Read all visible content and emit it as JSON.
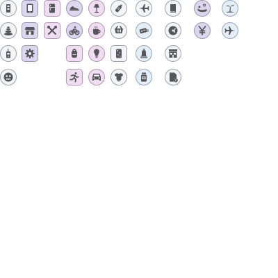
{
  "icons": [
    {
      "name": "battery-phone-icon"
    },
    {
      "name": "tablet-icon"
    },
    {
      "name": "refrigerator-icon"
    },
    {
      "name": "sneaker-icon"
    },
    {
      "name": "floor-lamp-icon"
    },
    {
      "name": "baby-bottle-icon"
    },
    {
      "name": "airplane-icon"
    },
    {
      "name": "book-icon"
    },
    {
      "name": "hot-spring-icon"
    },
    {
      "name": "palm-beach-icon"
    },
    {
      "name": "stone-stack-icon"
    },
    {
      "name": "storefront-icon"
    },
    {
      "name": "tools-icon"
    },
    {
      "name": "bicycle-icon"
    },
    {
      "name": "coffee-cup-icon"
    },
    {
      "name": "basket-icon"
    },
    {
      "name": "tickets-icon"
    },
    {
      "name": "music-disc-icon"
    },
    {
      "name": "yen-icon"
    },
    {
      "name": "airplane-landing-icon"
    },
    {
      "name": "walkie-talkie-icon"
    },
    {
      "name": "gear-icon"
    },
    {
      "name": "backpack-icon"
    },
    {
      "name": "lightbulb-icon"
    },
    {
      "name": "phone-case-icon"
    },
    {
      "name": "bell-icon"
    },
    {
      "name": "shop-icon"
    },
    {
      "name": "monster-face-icon"
    },
    {
      "name": "running-person-icon"
    },
    {
      "name": "car-front-icon"
    },
    {
      "name": "baby-onesie-icon"
    },
    {
      "name": "medicine-jar-icon"
    },
    {
      "name": "document-music-icon"
    }
  ]
}
